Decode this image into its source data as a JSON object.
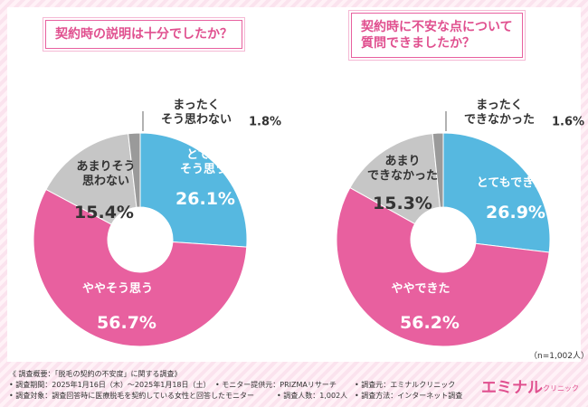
{
  "chart_data": [
    {
      "type": "donut",
      "title": "契約時の説明は十分でしたか？",
      "categories": [
        "とても\nそう思う",
        "ややそう思う",
        "あまりそう\n思わない",
        "まったく\nそう思わない"
      ],
      "values": [
        26.1,
        56.7,
        15.4,
        1.8
      ],
      "value_labels": [
        "26.1%",
        "56.7%",
        "15.4%",
        "1.8%"
      ],
      "colors": [
        "#56b8e0",
        "#e8609f",
        "#c6c6c6",
        "#9a9a9a"
      ]
    },
    {
      "type": "donut",
      "title": "契約時に不安な点について\n質問できましたか？",
      "categories": [
        "とてもできた",
        "ややできた",
        "あまり\nできなかった",
        "まったく\nできなかった"
      ],
      "values": [
        26.9,
        56.2,
        15.3,
        1.6
      ],
      "value_labels": [
        "26.9%",
        "56.2%",
        "15.3%",
        "1.6%"
      ],
      "colors": [
        "#56b8e0",
        "#e8609f",
        "#c6c6c6",
        "#9a9a9a"
      ]
    }
  ],
  "sample_note": "（n=1,002人）",
  "footer": {
    "heading": "《 調査概要：「脱毛の契約の不安度」に関する調査》",
    "items": [
      "• 調査期間：2025年1月16日（木）～2025年1月18日（土）",
      "• モニター提供元：PRIZMAリサーチ",
      "• 調査元：エミナルクリニック",
      "• 調査対象：調査回答時に医療脱毛を契約している女性と回答したモニター",
      "• 調査人数：1,002人",
      "• 調査方法：インターネット調査"
    ],
    "logo": "エミナル",
    "logo_sub": "クリニック"
  }
}
